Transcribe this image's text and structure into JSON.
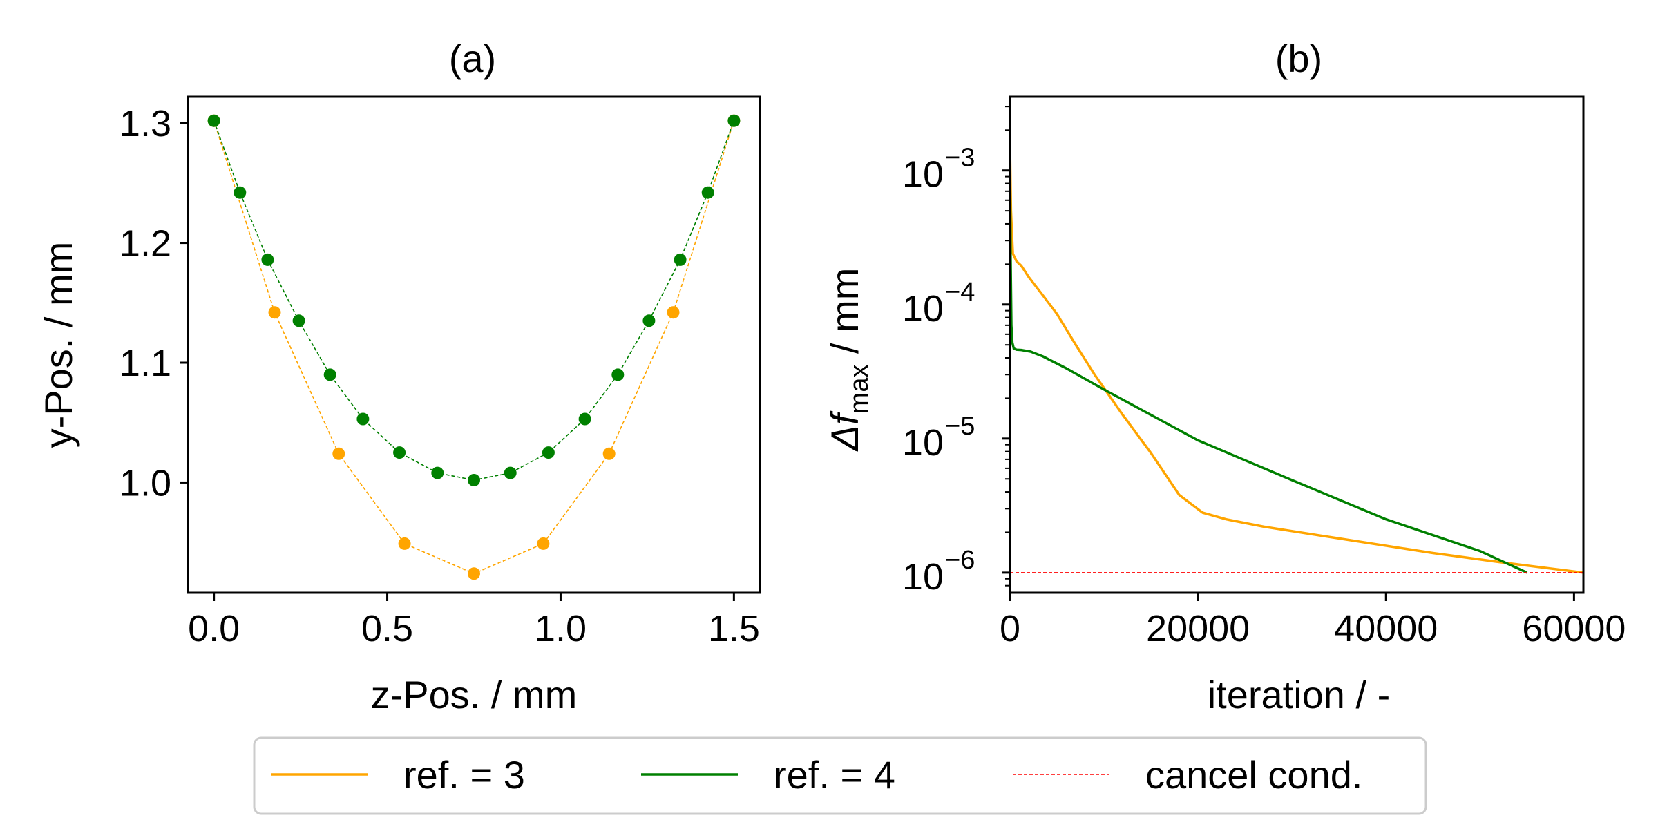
{
  "chart_data": [
    {
      "type": "line",
      "title": "(a)",
      "xlabel": "z-Pos. / mm",
      "ylabel": "y-Pos. / mm",
      "xlim": [
        -0.075,
        1.575
      ],
      "ylim": [
        0.908,
        1.322
      ],
      "xticks": [
        0.0,
        0.5,
        1.0,
        1.5
      ],
      "xtick_labels": [
        "0.0",
        "0.5",
        "1.0",
        "1.5"
      ],
      "yticks": [
        1.0,
        1.1,
        1.2,
        1.3
      ],
      "ytick_labels": [
        "1.0",
        "1.1",
        "1.2",
        "1.3"
      ],
      "series": [
        {
          "name": "ref. = 3",
          "color": "#ffa500",
          "x": [
            0.0,
            0.175,
            0.36,
            0.55,
            0.75,
            0.95,
            1.14,
            1.325,
            1.5
          ],
          "y": [
            1.302,
            1.142,
            1.024,
            0.949,
            0.924,
            0.949,
            1.024,
            1.142,
            1.302
          ]
        },
        {
          "name": "ref. = 4",
          "color": "#008000",
          "x": [
            0.0,
            0.075,
            0.155,
            0.245,
            0.335,
            0.43,
            0.535,
            0.645,
            0.75,
            0.855,
            0.965,
            1.07,
            1.165,
            1.255,
            1.345,
            1.425,
            1.5
          ],
          "y": [
            1.302,
            1.242,
            1.186,
            1.135,
            1.09,
            1.053,
            1.025,
            1.008,
            1.002,
            1.008,
            1.025,
            1.053,
            1.09,
            1.135,
            1.186,
            1.242,
            1.302
          ]
        }
      ]
    },
    {
      "type": "line",
      "title": "(b)",
      "xlabel": "iteration / -",
      "ylabel_main": "Δf",
      "ylabel_sub": "max",
      "ylabel_unit": " / mm",
      "xlim": [
        0,
        61000
      ],
      "ylim_log10": [
        -6.15,
        -2.45
      ],
      "yscale": "log",
      "xticks": [
        0,
        20000,
        40000,
        60000
      ],
      "xtick_labels": [
        "0",
        "20000",
        "40000",
        "60000"
      ],
      "yticks_exp": [
        -6,
        -5,
        -4,
        -3
      ],
      "ytick_base": "10",
      "ytick_exps": [
        "−6",
        "−5",
        "−4",
        "−3"
      ],
      "series": [
        {
          "name": "ref. = 3",
          "color": "#ffa500",
          "x": [
            0,
            100,
            300,
            700,
            1200,
            2000,
            3500,
            5000,
            7000,
            9000,
            12000,
            15000,
            18000,
            20500,
            23000,
            27000,
            35000,
            45000,
            52000,
            61000
          ],
          "y": [
            0.0015,
            0.0005,
            0.00024,
            0.00021,
            0.000195,
            0.00016,
            0.000117,
            8.5e-05,
            5e-05,
            3e-05,
            1.5e-05,
            7.8e-06,
            3.8e-06,
            2.8e-06,
            2.5e-06,
            2.2e-06,
            1.8e-06,
            1.4e-06,
            1.2e-06,
            1e-06
          ]
        },
        {
          "name": "ref. = 4",
          "color": "#008000",
          "x": [
            0,
            60,
            150,
            250,
            400,
            700,
            1200,
            2200,
            3500,
            6000,
            10000,
            20000,
            30000,
            40000,
            50000,
            55000
          ],
          "y": [
            0.0012,
            0.00025,
            7e-05,
            5.2e-05,
            4.7e-05,
            4.6e-05,
            4.58e-05,
            4.45e-05,
            4.1e-05,
            3.34e-05,
            2.32e-05,
            9.7e-06,
            4.9e-06,
            2.5e-06,
            1.45e-06,
            1e-06
          ]
        },
        {
          "name": "cancel cond.",
          "color": "#ff0000",
          "dashed": true,
          "x": [
            0,
            61000
          ],
          "y": [
            1e-06,
            1e-06
          ]
        }
      ]
    }
  ],
  "legend": {
    "placement": "bottom-center",
    "items": [
      {
        "label": "ref. = 3",
        "color": "#ffa500",
        "style": "solid"
      },
      {
        "label": "ref. = 4",
        "color": "#008000",
        "style": "solid"
      },
      {
        "label": "cancel cond.",
        "color": "#ff0000",
        "style": "dashed"
      }
    ]
  }
}
